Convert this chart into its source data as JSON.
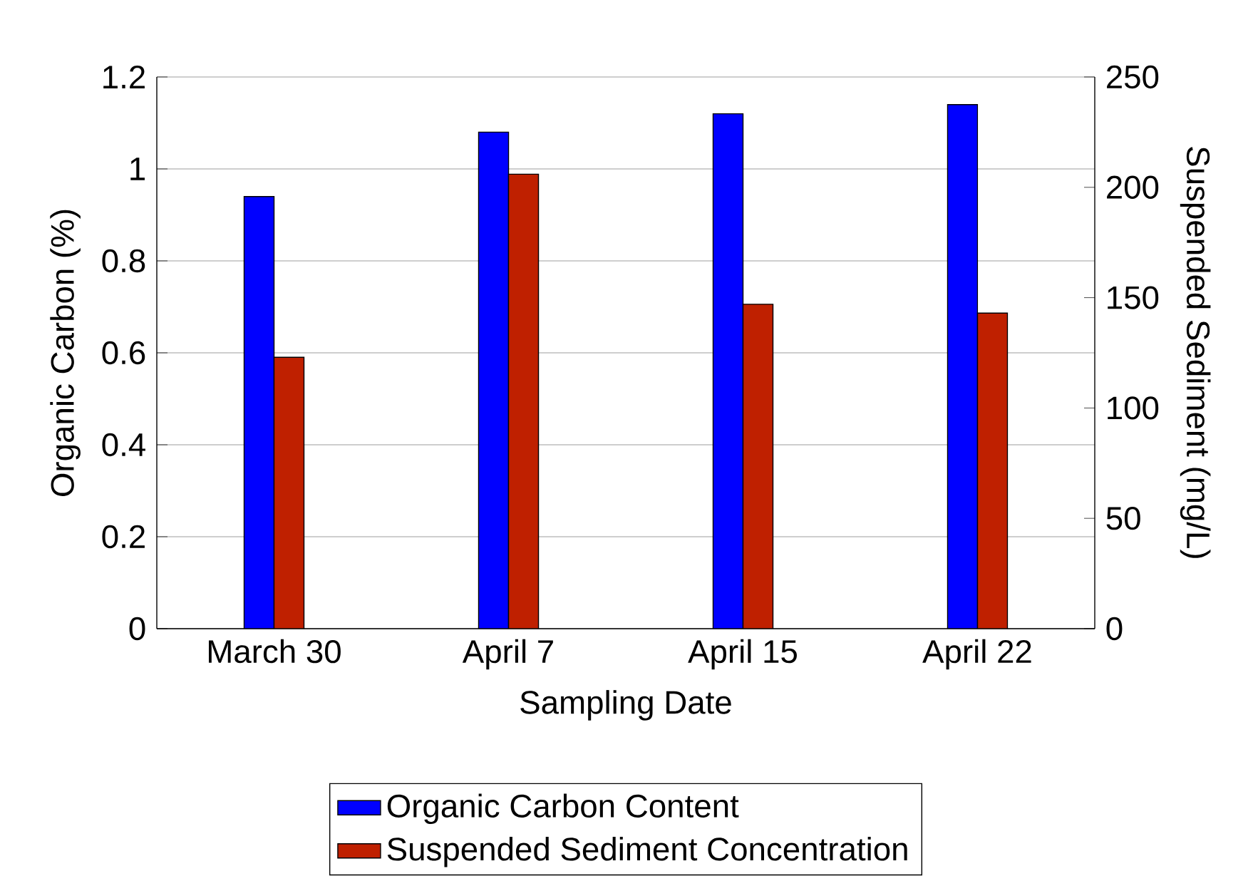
{
  "chart_data": {
    "type": "bar",
    "xlabel": "Sampling Date",
    "ylabel": "Organic Carbon (%)",
    "y2label": "Suspended Sediment (mg/L)",
    "categories": [
      "March 30",
      "April 7",
      "April 15",
      "April 22"
    ],
    "series": [
      {
        "name": "Organic Carbon Content",
        "color": "#0000ff",
        "values": [
          0.94,
          1.08,
          1.12,
          1.14
        ]
      },
      {
        "name": "Suspended Sediment Concentration",
        "color": "#bf2000",
        "axis": "y2",
        "values": [
          123,
          206,
          147,
          143
        ]
      }
    ],
    "ylim": [
      0,
      1.2
    ],
    "yticks": [
      0,
      0.2,
      0.4,
      0.6,
      0.8,
      1,
      1.2
    ],
    "y2lim": [
      0,
      250
    ],
    "y2ticks": [
      0,
      50,
      100,
      150,
      200,
      250
    ],
    "grid": "y",
    "legend": "bottom"
  }
}
